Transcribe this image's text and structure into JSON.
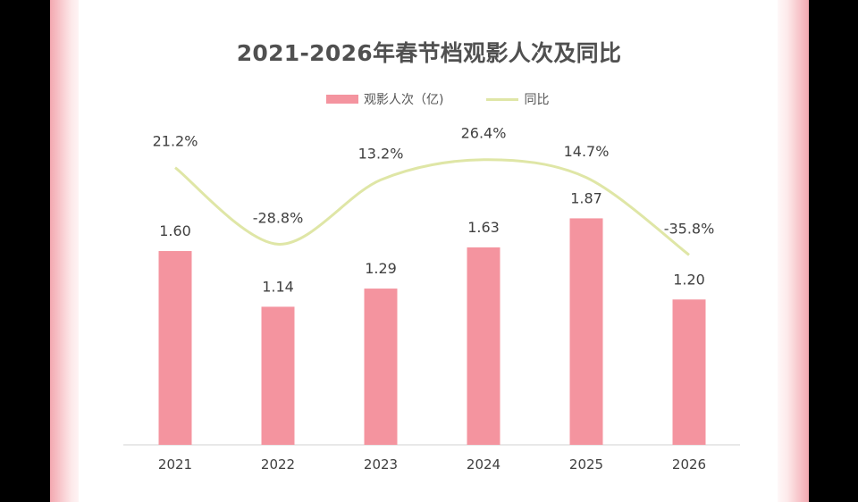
{
  "chart_data": {
    "type": "bar",
    "title": "2021-2026年春节档观影人次及同比",
    "categories": [
      "2021",
      "2022",
      "2023",
      "2024",
      "2025",
      "2026"
    ],
    "series": [
      {
        "name": "观影人次（亿)",
        "type": "bar",
        "values": [
          1.6,
          1.14,
          1.29,
          1.63,
          1.87,
          1.2
        ],
        "labels": [
          "1.60",
          "1.14",
          "1.29",
          "1.63",
          "1.87",
          "1.20"
        ]
      },
      {
        "name": "同比",
        "type": "line",
        "values": [
          21.2,
          -28.8,
          13.2,
          26.4,
          14.7,
          -35.8
        ],
        "labels": [
          "21.2%",
          "-28.8%",
          "13.2%",
          "26.4%",
          "14.7%",
          "-35.8%"
        ]
      }
    ],
    "legend_position": "top",
    "grid": false,
    "colors": {
      "bar": "#f4949f",
      "line": "#dfe6a6"
    }
  }
}
